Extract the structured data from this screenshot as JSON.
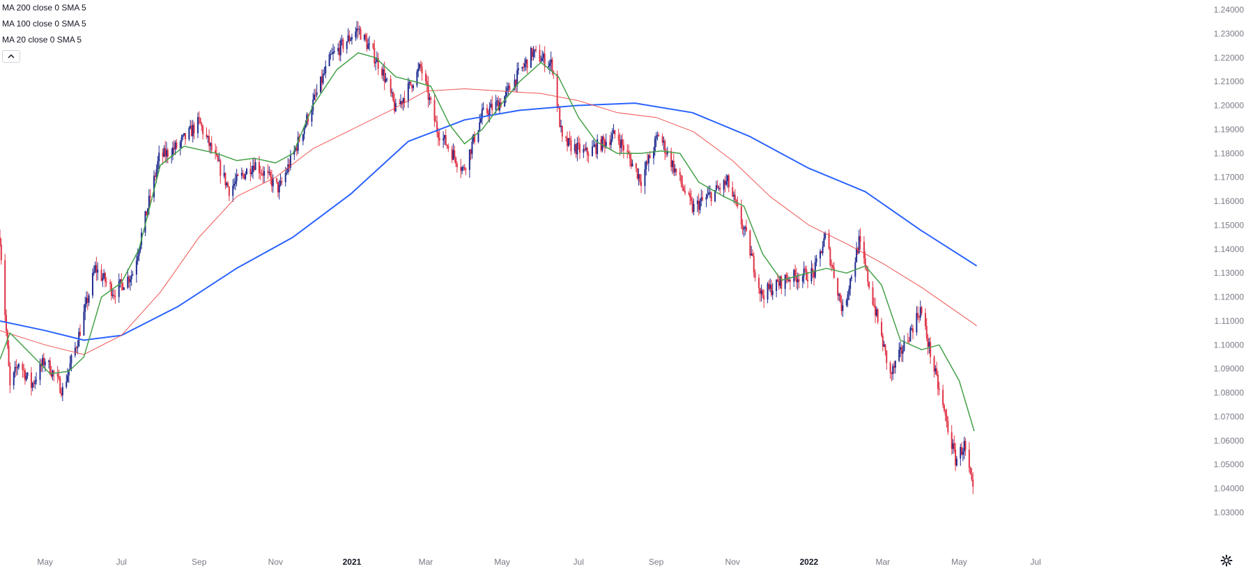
{
  "legend": {
    "items": [
      "MA 200 close 0 SMA 5",
      "MA 100 close 0 SMA 5",
      "MA 20 close 0 SMA 5"
    ]
  },
  "controls": {
    "collapse_icon": "chevron-up-icon",
    "settings_icon": "gear-icon"
  },
  "colors": {
    "up": "#1f2b8f",
    "down": "#e03245",
    "ma200": "#2962ff",
    "ma100": "#ef5350",
    "ma20": "#43a047",
    "axis_text": "#787b86"
  },
  "chart_data": {
    "type": "candlestick",
    "title": "",
    "y_tick_labels": [
      "1.24000",
      "1.23000",
      "1.22000",
      "1.21000",
      "1.20000",
      "1.19000",
      "1.18000",
      "1.17000",
      "1.16000",
      "1.15000",
      "1.14000",
      "1.13000",
      "1.12000",
      "1.11000",
      "1.10000",
      "1.09000",
      "1.08000",
      "1.07000",
      "1.06000",
      "1.05000",
      "1.04000",
      "1.03000"
    ],
    "x_tick_labels": [
      "May",
      "Jul",
      "Sep",
      "Nov",
      "2021",
      "Mar",
      "May",
      "Jul",
      "Sep",
      "Nov",
      "2022",
      "Mar",
      "May",
      "Jul"
    ],
    "x_range": [
      "2020-03-26",
      "2022-07-31"
    ],
    "ylim": [
      1.03,
      1.24
    ],
    "price_path": [
      [
        "2020-03-26",
        1.145
      ],
      [
        "2020-04-03",
        1.082
      ],
      [
        "2020-04-10",
        1.093
      ],
      [
        "2020-04-20",
        1.083
      ],
      [
        "2020-05-01",
        1.094
      ],
      [
        "2020-05-15",
        1.081
      ],
      [
        "2020-05-27",
        1.102
      ],
      [
        "2020-06-10",
        1.132
      ],
      [
        "2020-06-25",
        1.122
      ],
      [
        "2020-07-10",
        1.13
      ],
      [
        "2020-07-31",
        1.178
      ],
      [
        "2020-08-15",
        1.183
      ],
      [
        "2020-09-01",
        1.193
      ],
      [
        "2020-09-25",
        1.165
      ],
      [
        "2020-10-15",
        1.176
      ],
      [
        "2020-11-04",
        1.165
      ],
      [
        "2020-11-20",
        1.186
      ],
      [
        "2020-12-15",
        1.22
      ],
      [
        "2021-01-06",
        1.232
      ],
      [
        "2021-01-25",
        1.215
      ],
      [
        "2021-02-05",
        1.198
      ],
      [
        "2021-02-25",
        1.216
      ],
      [
        "2021-03-10",
        1.19
      ],
      [
        "2021-03-31",
        1.173
      ],
      [
        "2021-04-15",
        1.196
      ],
      [
        "2021-05-01",
        1.202
      ],
      [
        "2021-05-25",
        1.222
      ],
      [
        "2021-06-10",
        1.217
      ],
      [
        "2021-06-18",
        1.185
      ],
      [
        "2021-07-07",
        1.18
      ],
      [
        "2021-07-31",
        1.188
      ],
      [
        "2021-08-20",
        1.169
      ],
      [
        "2021-09-03",
        1.188
      ],
      [
        "2021-09-30",
        1.157
      ],
      [
        "2021-10-28",
        1.168
      ],
      [
        "2021-11-12",
        1.145
      ],
      [
        "2021-11-24",
        1.121
      ],
      [
        "2021-12-15",
        1.128
      ],
      [
        "2022-01-05",
        1.13
      ],
      [
        "2022-01-14",
        1.145
      ],
      [
        "2022-01-28",
        1.114
      ],
      [
        "2022-02-10",
        1.143
      ],
      [
        "2022-02-24",
        1.112
      ],
      [
        "2022-03-07",
        1.087
      ],
      [
        "2022-03-31",
        1.115
      ],
      [
        "2022-04-13",
        1.085
      ],
      [
        "2022-04-28",
        1.052
      ],
      [
        "2022-05-05",
        1.058
      ],
      [
        "2022-05-12",
        1.038
      ]
    ],
    "series": [
      {
        "name": "MA 200 close 0 SMA 5",
        "points": [
          [
            "2020-03-26",
            1.11
          ],
          [
            "2020-05-01",
            1.106
          ],
          [
            "2020-06-01",
            1.102
          ],
          [
            "2020-07-01",
            1.104
          ],
          [
            "2020-08-15",
            1.116
          ],
          [
            "2020-10-01",
            1.132
          ],
          [
            "2020-11-15",
            1.145
          ],
          [
            "2020-12-31",
            1.163
          ],
          [
            "2021-02-15",
            1.185
          ],
          [
            "2021-04-01",
            1.194
          ],
          [
            "2021-05-15",
            1.198
          ],
          [
            "2021-06-30",
            1.2
          ],
          [
            "2021-08-15",
            1.201
          ],
          [
            "2021-09-30",
            1.197
          ],
          [
            "2021-11-15",
            1.187
          ],
          [
            "2021-12-31",
            1.174
          ],
          [
            "2022-02-15",
            1.164
          ],
          [
            "2022-03-31",
            1.148
          ],
          [
            "2022-05-15",
            1.133
          ]
        ]
      },
      {
        "name": "MA 100 close 0 SMA 5",
        "points": [
          [
            "2020-03-26",
            1.106
          ],
          [
            "2020-05-01",
            1.1
          ],
          [
            "2020-06-01",
            1.096
          ],
          [
            "2020-07-01",
            1.104
          ],
          [
            "2020-08-01",
            1.122
          ],
          [
            "2020-09-01",
            1.145
          ],
          [
            "2020-10-01",
            1.162
          ],
          [
            "2020-11-01",
            1.17
          ],
          [
            "2020-12-01",
            1.182
          ],
          [
            "2021-01-01",
            1.19
          ],
          [
            "2021-02-01",
            1.198
          ],
          [
            "2021-03-01",
            1.206
          ],
          [
            "2021-04-01",
            1.207
          ],
          [
            "2021-05-01",
            1.206
          ],
          [
            "2021-06-01",
            1.205
          ],
          [
            "2021-07-01",
            1.202
          ],
          [
            "2021-08-01",
            1.197
          ],
          [
            "2021-09-01",
            1.195
          ],
          [
            "2021-10-01",
            1.189
          ],
          [
            "2021-11-01",
            1.177
          ],
          [
            "2021-12-01",
            1.162
          ],
          [
            "2022-01-01",
            1.15
          ],
          [
            "2022-02-01",
            1.142
          ],
          [
            "2022-03-01",
            1.134
          ],
          [
            "2022-04-01",
            1.124
          ],
          [
            "2022-05-15",
            1.108
          ]
        ]
      },
      {
        "name": "MA 20 close 0 SMA 5",
        "points": [
          [
            "2020-03-26",
            1.094
          ],
          [
            "2020-04-03",
            1.105
          ],
          [
            "2020-04-20",
            1.096
          ],
          [
            "2020-05-05",
            1.088
          ],
          [
            "2020-05-20",
            1.089
          ],
          [
            "2020-06-01",
            1.095
          ],
          [
            "2020-06-15",
            1.12
          ],
          [
            "2020-07-01",
            1.126
          ],
          [
            "2020-07-15",
            1.14
          ],
          [
            "2020-08-01",
            1.175
          ],
          [
            "2020-08-20",
            1.183
          ],
          [
            "2020-09-15",
            1.18
          ],
          [
            "2020-10-01",
            1.177
          ],
          [
            "2020-10-15",
            1.178
          ],
          [
            "2020-11-01",
            1.176
          ],
          [
            "2020-11-15",
            1.18
          ],
          [
            "2020-12-01",
            1.2
          ],
          [
            "2020-12-20",
            1.215
          ],
          [
            "2021-01-06",
            1.222
          ],
          [
            "2021-01-20",
            1.22
          ],
          [
            "2021-02-05",
            1.212
          ],
          [
            "2021-02-20",
            1.21
          ],
          [
            "2021-03-05",
            1.208
          ],
          [
            "2021-03-20",
            1.192
          ],
          [
            "2021-04-01",
            1.184
          ],
          [
            "2021-04-15",
            1.19
          ],
          [
            "2021-05-01",
            1.201
          ],
          [
            "2021-05-15",
            1.21
          ],
          [
            "2021-06-01",
            1.218
          ],
          [
            "2021-06-15",
            1.212
          ],
          [
            "2021-07-01",
            1.195
          ],
          [
            "2021-07-15",
            1.185
          ],
          [
            "2021-08-01",
            1.18
          ],
          [
            "2021-08-20",
            1.18
          ],
          [
            "2021-09-05",
            1.181
          ],
          [
            "2021-09-20",
            1.18
          ],
          [
            "2021-10-05",
            1.168
          ],
          [
            "2021-10-25",
            1.162
          ],
          [
            "2021-11-10",
            1.158
          ],
          [
            "2021-11-25",
            1.138
          ],
          [
            "2021-12-10",
            1.127
          ],
          [
            "2021-12-31",
            1.13
          ],
          [
            "2022-01-15",
            1.132
          ],
          [
            "2022-01-31",
            1.13
          ],
          [
            "2022-02-15",
            1.133
          ],
          [
            "2022-02-28",
            1.125
          ],
          [
            "2022-03-15",
            1.102
          ],
          [
            "2022-04-01",
            1.098
          ],
          [
            "2022-04-15",
            1.1
          ],
          [
            "2022-05-01",
            1.085
          ],
          [
            "2022-05-13",
            1.064
          ]
        ]
      }
    ],
    "grid": false,
    "legend_position": "top-left"
  }
}
